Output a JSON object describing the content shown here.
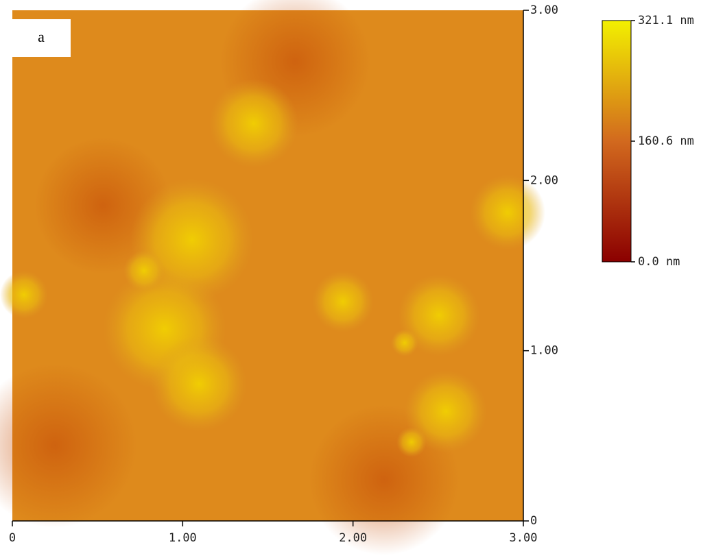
{
  "chart_data": {
    "type": "image",
    "panel_label": "a",
    "xlim": [
      0,
      3
    ],
    "xticks": [
      0,
      {
        "value": 1,
        "label": "1.00"
      },
      {
        "value": 2,
        "label": "2.00"
      },
      {
        "value": 3,
        "label": "3.00"
      }
    ],
    "ylim": [
      0,
      3
    ],
    "yticks": [
      0,
      {
        "value": 1,
        "label": "1.00"
      },
      {
        "value": 2,
        "label": "2.00"
      },
      {
        "value": 3,
        "label": "3.00"
      }
    ],
    "colorbar": {
      "range": [
        0,
        321.1
      ],
      "colors": [
        "#8b0000",
        "#d2691e",
        "#f2f000"
      ],
      "ticks": [
        {
          "value": 0,
          "label": "0.0 nm"
        },
        {
          "value": 160.6,
          "label": "160.6 nm"
        },
        {
          "value": 321.1,
          "label": "321.1 nm"
        }
      ]
    }
  }
}
